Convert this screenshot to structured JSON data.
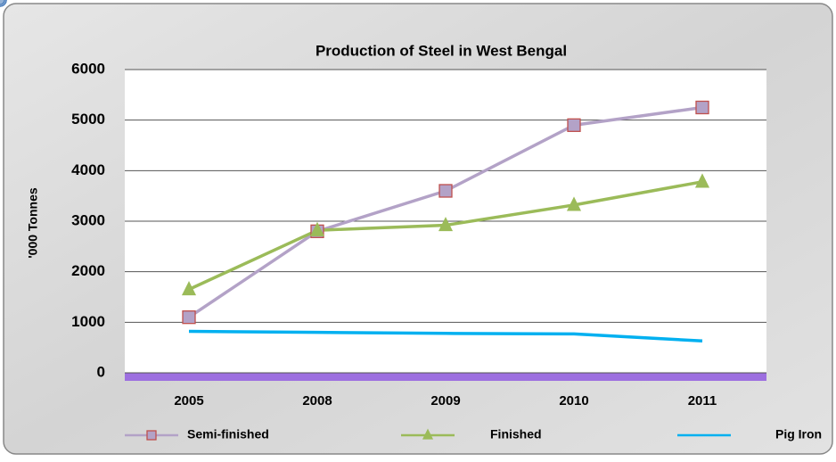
{
  "chart_data": {
    "type": "line",
    "title": "Production of  Steel in West Bengal",
    "y_label": "'000 Tonnes",
    "categories": [
      "2005",
      "2008",
      "2009",
      "2010",
      "2011"
    ],
    "series": [
      {
        "name": "Semi-finished",
        "color": "#b3a2c7",
        "marker": "square",
        "marker_edge": "#c0504d",
        "values": [
          1100,
          2800,
          3600,
          4900,
          5250
        ]
      },
      {
        "name": "Finished",
        "color": "#9bbb59",
        "marker": "triangle",
        "marker_edge": "#9bbb59",
        "values": [
          1650,
          2820,
          2920,
          3320,
          3780
        ]
      },
      {
        "name": "Pig Iron",
        "color": "#00b0f0",
        "marker": "circle",
        "marker_edge": "#4f81bd",
        "values": [
          820,
          800,
          780,
          770,
          630
        ]
      }
    ],
    "ylim": [
      0,
      6000
    ],
    "yticks": [
      0,
      1000,
      2000,
      3000,
      4000,
      5000,
      6000
    ],
    "grid": true
  }
}
